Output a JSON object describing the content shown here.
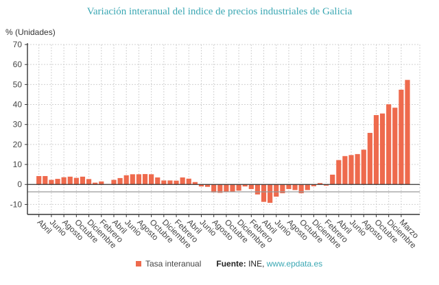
{
  "colors": {
    "bar": "#ee6a4d",
    "title": "#3aa7b3",
    "zero_line": "#333333",
    "reference_line": "#999999"
  },
  "chart_data": {
    "type": "bar",
    "title": "Variación interanual del indice de precios industriales de Galicia",
    "ylabel": "% (Unidades)",
    "xlabel": "",
    "ylim": [
      -15,
      70
    ],
    "yticks": [
      -10,
      0,
      10,
      20,
      30,
      40,
      50,
      60,
      70
    ],
    "grid": true,
    "legend_position": "bottom",
    "reference_line": -3.7,
    "x_tick_labels": [
      "Abril",
      "Junio",
      "Agosto",
      "Octubre",
      "Diciembre",
      "Febrero",
      "Abril",
      "Junio",
      "Agosto",
      "Octubre",
      "Diciembre",
      "Febrero",
      "Abril",
      "Junio",
      "Agosto",
      "Octubre",
      "Diciembre",
      "Febrero",
      "Abril",
      "Junio",
      "Agosto",
      "Octubre",
      "Diciembre",
      "Febrero",
      "Abril",
      "Junio",
      "Agosto",
      "Octubre",
      "Diciembre",
      "Marzo"
    ],
    "series": [
      {
        "name": "Tasa interanual",
        "values": [
          4.2,
          4.2,
          2.3,
          2.8,
          3.6,
          3.9,
          3.3,
          3.9,
          2.7,
          0.9,
          1.5,
          0.2,
          2.3,
          3.2,
          4.6,
          5.1,
          5.1,
          5.2,
          5.1,
          3.5,
          2.0,
          2.0,
          1.9,
          3.5,
          2.9,
          1.2,
          -1.0,
          -1.2,
          -4.0,
          -4.2,
          -3.8,
          -3.8,
          -3.1,
          -1.0,
          -2.3,
          -5.0,
          -8.7,
          -9.2,
          -6.1,
          -4.4,
          -2.3,
          -2.8,
          -4.4,
          -2.8,
          -0.9,
          0.7,
          -0.6,
          4.9,
          12.2,
          14.2,
          14.7,
          15.2,
          17.4,
          25.8,
          34.7,
          35.5,
          40.1,
          38.4,
          47.4,
          52.3
        ]
      }
    ]
  },
  "legend": {
    "label": "Tasa interanual"
  },
  "source": {
    "label": "Fuente:",
    "text": " INE, ",
    "link": "www.epdata.es"
  }
}
